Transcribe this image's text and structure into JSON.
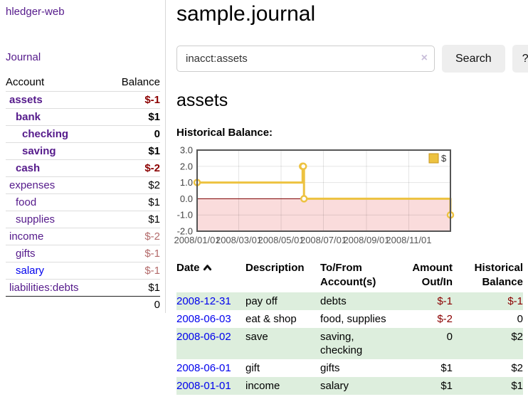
{
  "app": {
    "brand": "hledger-web",
    "nav_journal": "Journal"
  },
  "colors": {
    "link_purple": "#551A8B",
    "link_blue": "#0000EE",
    "negative_strong": "#8B0000",
    "negative_soft": "#B36A6A",
    "row_stripe_green": "#DDEEDD",
    "chart_line_yellow": "#EDC240",
    "chart_negative_fill": "#FADCDC",
    "chart_zero_line": "#800000"
  },
  "sidebar": {
    "header": {
      "account": "Account",
      "balance": "Balance"
    },
    "rows": [
      {
        "label": "assets",
        "balance": "$-1"
      },
      {
        "label": "bank",
        "balance": "$1"
      },
      {
        "label": "checking",
        "balance": "0"
      },
      {
        "label": "saving",
        "balance": "$1"
      },
      {
        "label": "cash",
        "balance": "$-2"
      },
      {
        "label": "expenses",
        "balance": "$2"
      },
      {
        "label": "food",
        "balance": "$1"
      },
      {
        "label": "supplies",
        "balance": "$1"
      },
      {
        "label": "income",
        "balance": "$-2"
      },
      {
        "label": "gifts",
        "balance": "$-1"
      },
      {
        "label": "salary",
        "balance": "$-1"
      },
      {
        "label": "liabilities:debts",
        "balance": "$1"
      }
    ],
    "total": "0"
  },
  "main": {
    "title": "sample.journal",
    "search": {
      "value": "inacct:assets",
      "clear_icon": "×",
      "button_label": "Search",
      "help_label": "?"
    },
    "account_heading": "assets",
    "chart_title": "Historical Balance:"
  },
  "chart_data": {
    "type": "line",
    "step": true,
    "title": "Historical Balance",
    "xrange": [
      "2008-01-01",
      "2008-12-31"
    ],
    "ylim": [
      -2,
      3
    ],
    "yticks": [
      3,
      2,
      1,
      0,
      -1,
      -2
    ],
    "xticks": [
      "2008/01/01",
      "2008/03/01",
      "2008/05/01",
      "2008/07/01",
      "2008/09/01",
      "2008/11/01"
    ],
    "legend_position": "top-right",
    "series": [
      {
        "name": "$",
        "color": "#EDC240",
        "points": [
          [
            "2008-01-01",
            1
          ],
          [
            "2008-06-01",
            2
          ],
          [
            "2008-06-02",
            2
          ],
          [
            "2008-06-03",
            0
          ],
          [
            "2008-12-31",
            -1
          ]
        ]
      }
    ]
  },
  "register": {
    "headers": {
      "date": "Date",
      "description": "Description",
      "to_from": "To/From Account(s)",
      "amount": "Amount Out/In",
      "balance": "Historical Balance"
    },
    "rows": [
      {
        "date": "2008-12-31",
        "description": "pay off",
        "to_from": "debts",
        "amount": "$-1",
        "balance": "$-1"
      },
      {
        "date": "2008-06-03",
        "description": "eat & shop",
        "to_from": "food, supplies",
        "amount": "$-2",
        "balance": "0"
      },
      {
        "date": "2008-06-02",
        "description": "save",
        "to_from": "saving, checking",
        "amount": "0",
        "balance": "$2"
      },
      {
        "date": "2008-06-01",
        "description": "gift",
        "to_from": "gifts",
        "amount": "$1",
        "balance": "$2"
      },
      {
        "date": "2008-01-01",
        "description": "income",
        "to_from": "salary",
        "amount": "$1",
        "balance": "$1"
      }
    ]
  }
}
